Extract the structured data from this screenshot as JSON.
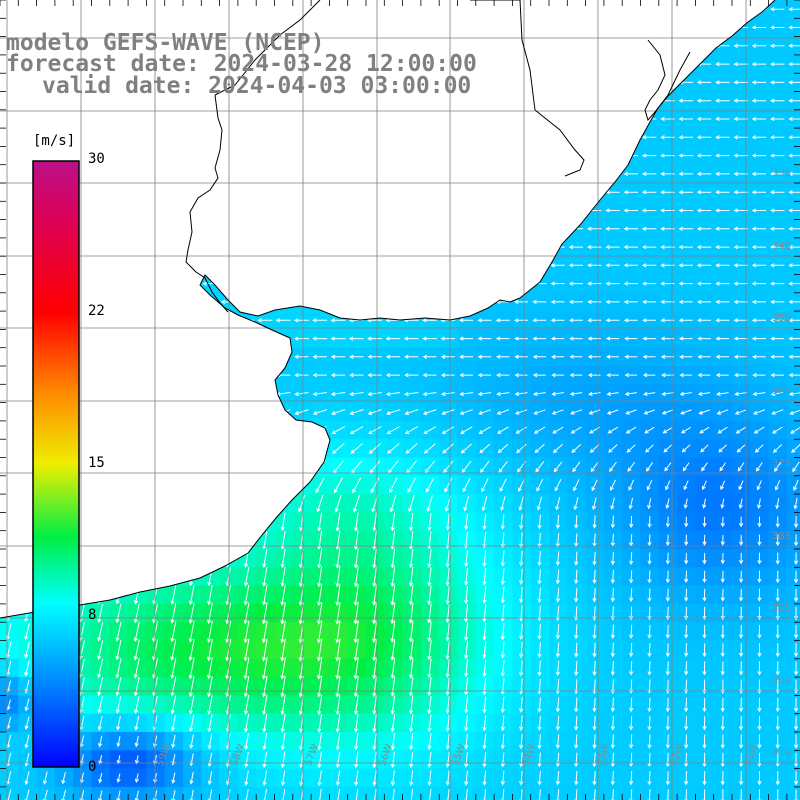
{
  "header": {
    "line1": "modelo GEFS-WAVE (NCEP)",
    "line2": "forecast date: 2024-03-28 12:00:00",
    "line3": "valid date: 2024-04-03 03:00:00"
  },
  "colorbar": {
    "unit": "[m/s]",
    "ticks": [
      "30",
      "22",
      "15",
      "8",
      "0"
    ],
    "range": [
      0,
      30
    ]
  },
  "map": {
    "variable": "wind speed and direction",
    "lat_labels": [
      "33S",
      "34S",
      "35S",
      "36S",
      "37S",
      "38S",
      "39S",
      "40S",
      "41S"
    ],
    "lon_labels": [
      "59W",
      "58W",
      "57W",
      "56W",
      "55W",
      "54W",
      "53W",
      "52W",
      "51W"
    ],
    "colors": {
      "land": "#ffffff",
      "grid": "#808080",
      "coast": "#000000",
      "arrows": "#ffffff",
      "label": "#8a8a8a"
    }
  }
}
